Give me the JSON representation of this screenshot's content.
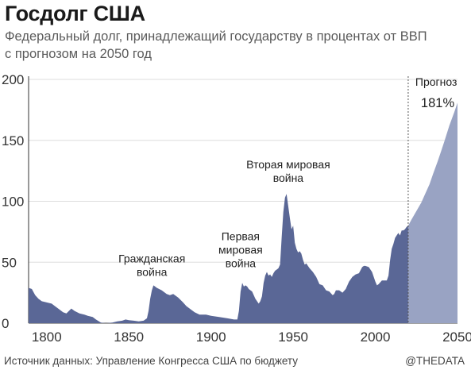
{
  "header": {
    "title": "Госдолг США",
    "subtitle_line1": "Федеральный долг, принадлежащий государству в процентах от ВВП",
    "subtitle_line2": "с прогнозом на 2050 год"
  },
  "footer": {
    "source": "Источник данных: Управление Конгресса США по бюджету",
    "brand": "@THEDATA"
  },
  "colors": {
    "historical": "#5a6796",
    "forecast": "#99a3c3",
    "grid": "#dddddd"
  },
  "chart_data": {
    "type": "area",
    "title": "Госдолг США",
    "xlim": [
      1789,
      2050
    ],
    "ylim": [
      0,
      200
    ],
    "x_ticks": [
      1800,
      1850,
      1900,
      1950,
      2000,
      2050
    ],
    "y_ticks": [
      0,
      50,
      100,
      150,
      200
    ],
    "grid": "horizontal",
    "forecast_start": 2020,
    "series": [
      {
        "values": [
          [
            1789,
            29
          ],
          [
            1791,
            28
          ],
          [
            1793,
            23
          ],
          [
            1795,
            20
          ],
          [
            1797,
            18
          ],
          [
            1800,
            17
          ],
          [
            1803,
            16
          ],
          [
            1805,
            14
          ],
          [
            1808,
            11
          ],
          [
            1810,
            9
          ],
          [
            1812,
            8
          ],
          [
            1815,
            12
          ],
          [
            1817,
            10
          ],
          [
            1820,
            8
          ],
          [
            1823,
            7
          ],
          [
            1825,
            6
          ],
          [
            1828,
            5
          ],
          [
            1830,
            3
          ],
          [
            1833,
            0.5
          ],
          [
            1836,
            0
          ],
          [
            1840,
            0.5
          ],
          [
            1843,
            1.5
          ],
          [
            1846,
            2
          ],
          [
            1848,
            3
          ],
          [
            1850,
            2.5
          ],
          [
            1853,
            2
          ],
          [
            1856,
            1.5
          ],
          [
            1859,
            2
          ],
          [
            1861,
            4
          ],
          [
            1862,
            10
          ],
          [
            1863,
            20
          ],
          [
            1864,
            27
          ],
          [
            1865,
            31
          ],
          [
            1866,
            30
          ],
          [
            1867,
            29
          ],
          [
            1870,
            27
          ],
          [
            1873,
            24
          ],
          [
            1875,
            23
          ],
          [
            1877,
            24
          ],
          [
            1880,
            21
          ],
          [
            1883,
            17
          ],
          [
            1885,
            14
          ],
          [
            1888,
            11
          ],
          [
            1890,
            9
          ],
          [
            1893,
            7
          ],
          [
            1895,
            7
          ],
          [
            1897,
            7
          ],
          [
            1900,
            6
          ],
          [
            1905,
            5
          ],
          [
            1910,
            4
          ],
          [
            1914,
            3
          ],
          [
            1916,
            3
          ],
          [
            1917,
            10
          ],
          [
            1918,
            26
          ],
          [
            1919,
            33
          ],
          [
            1920,
            30
          ],
          [
            1921,
            31
          ],
          [
            1922,
            30
          ],
          [
            1923,
            28
          ],
          [
            1925,
            26
          ],
          [
            1927,
            20
          ],
          [
            1929,
            16
          ],
          [
            1930,
            18
          ],
          [
            1931,
            22
          ],
          [
            1932,
            33
          ],
          [
            1933,
            39
          ],
          [
            1934,
            42
          ],
          [
            1935,
            39
          ],
          [
            1936,
            40
          ],
          [
            1937,
            38
          ],
          [
            1938,
            41
          ],
          [
            1939,
            43
          ],
          [
            1940,
            44
          ],
          [
            1941,
            45
          ],
          [
            1942,
            48
          ],
          [
            1943,
            70
          ],
          [
            1944,
            91
          ],
          [
            1945,
            103
          ],
          [
            1946,
            106
          ],
          [
            1947,
            96
          ],
          [
            1948,
            86
          ],
          [
            1949,
            77
          ],
          [
            1950,
            80
          ],
          [
            1951,
            66
          ],
          [
            1952,
            61
          ],
          [
            1953,
            58
          ],
          [
            1954,
            59
          ],
          [
            1955,
            57
          ],
          [
            1956,
            52
          ],
          [
            1957,
            48
          ],
          [
            1958,
            49
          ],
          [
            1959,
            47
          ],
          [
            1960,
            45
          ],
          [
            1962,
            42
          ],
          [
            1964,
            38
          ],
          [
            1966,
            32
          ],
          [
            1968,
            31
          ],
          [
            1970,
            27
          ],
          [
            1972,
            26
          ],
          [
            1974,
            23
          ],
          [
            1975,
            24
          ],
          [
            1976,
            27
          ],
          [
            1978,
            27
          ],
          [
            1980,
            25
          ],
          [
            1982,
            28
          ],
          [
            1984,
            34
          ],
          [
            1986,
            38
          ],
          [
            1988,
            40
          ],
          [
            1990,
            41
          ],
          [
            1992,
            46
          ],
          [
            1993,
            47
          ],
          [
            1994,
            47
          ],
          [
            1996,
            46
          ],
          [
            1998,
            42
          ],
          [
            2000,
            34
          ],
          [
            2001,
            31
          ],
          [
            2002,
            32
          ],
          [
            2004,
            35
          ],
          [
            2006,
            35
          ],
          [
            2007,
            35
          ],
          [
            2008,
            39
          ],
          [
            2009,
            52
          ],
          [
            2010,
            61
          ],
          [
            2011,
            65
          ],
          [
            2012,
            70
          ],
          [
            2013,
            72
          ],
          [
            2014,
            74
          ],
          [
            2015,
            72
          ],
          [
            2016,
            76
          ],
          [
            2017,
            76
          ],
          [
            2018,
            77
          ],
          [
            2019,
            79
          ],
          [
            2020,
            80
          ]
        ]
      },
      {
        "values": [
          [
            2020,
            80
          ],
          [
            2022,
            85
          ],
          [
            2025,
            92
          ],
          [
            2028,
            99
          ],
          [
            2030,
            105
          ],
          [
            2033,
            114
          ],
          [
            2035,
            122
          ],
          [
            2038,
            133
          ],
          [
            2040,
            141
          ],
          [
            2042,
            149
          ],
          [
            2045,
            162
          ],
          [
            2048,
            173
          ],
          [
            2050,
            181
          ]
        ]
      }
    ],
    "annotations": [
      {
        "lines": [
          "Гражданская",
          "война"
        ],
        "x": 1864,
        "y": 50
      },
      {
        "lines": [
          "Первая",
          "мировая",
          "война"
        ],
        "x": 1918,
        "y": 68
      },
      {
        "lines": [
          "Вторая мировая",
          "война"
        ],
        "x": 1947,
        "y": 127
      }
    ],
    "forecast_label": "Прогноз",
    "forecast_value_label": "181%"
  }
}
